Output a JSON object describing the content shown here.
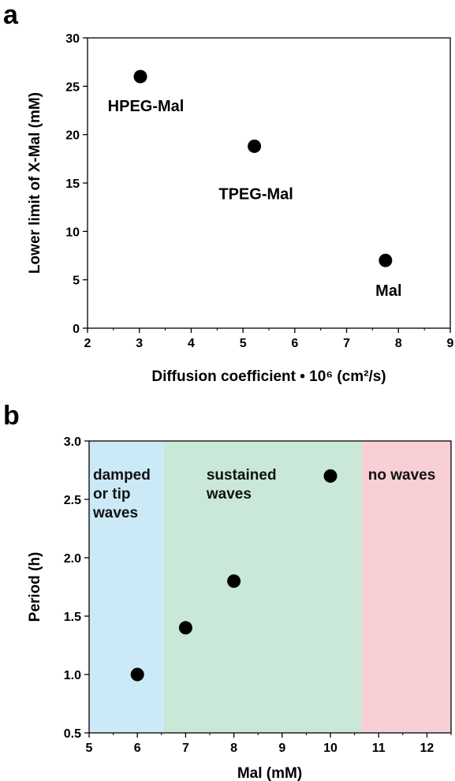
{
  "chart_data": [
    {
      "panel": "a",
      "type": "scatter",
      "xlabel": "Diffusion coefficient • 10⁶ (cm²/s)",
      "ylabel": "Lower limit of X-Mal (mM)",
      "xlim": [
        2,
        9
      ],
      "ylim": [
        0,
        30
      ],
      "xticks": [
        "2",
        "3",
        "4",
        "5",
        "6",
        "7",
        "8",
        "9"
      ],
      "yticks": [
        "0",
        "5",
        "10",
        "15",
        "20",
        "25",
        "30"
      ],
      "points": [
        {
          "x": 3.02,
          "y": 26.0,
          "label": "HPEG-Mal"
        },
        {
          "x": 5.22,
          "y": 18.8,
          "label": "TPEG-Mal"
        },
        {
          "x": 7.75,
          "y": 7.0,
          "label": "Mal"
        }
      ],
      "grid": false,
      "legend": "none"
    },
    {
      "panel": "b",
      "type": "scatter",
      "xlabel": "Mal (mM)",
      "ylabel": "Period (h)",
      "xlim": [
        5,
        12.5
      ],
      "ylim": [
        0.5,
        3.0
      ],
      "xticks": [
        "5",
        "6",
        "7",
        "8",
        "9",
        "10",
        "11",
        "12"
      ],
      "yticks": [
        "0.5",
        "1.0",
        "1.5",
        "2.0",
        "2.5",
        "3.0"
      ],
      "points": [
        {
          "x": 6,
          "y": 1.0
        },
        {
          "x": 7,
          "y": 1.4
        },
        {
          "x": 8,
          "y": 1.8
        },
        {
          "x": 10,
          "y": 2.7
        }
      ],
      "regions": [
        {
          "from": 5,
          "to": 6.55,
          "color": "#cce9f7",
          "lines": [
            "damped",
            "or tip",
            "waves"
          ]
        },
        {
          "from": 6.55,
          "to": 10.65,
          "color": "#c9e8d8",
          "lines": [
            "sustained",
            "waves"
          ]
        },
        {
          "from": 10.65,
          "to": 12.5,
          "color": "#f8cfd4",
          "lines": [
            "no waves"
          ]
        }
      ],
      "grid": false,
      "legend": "none"
    }
  ]
}
